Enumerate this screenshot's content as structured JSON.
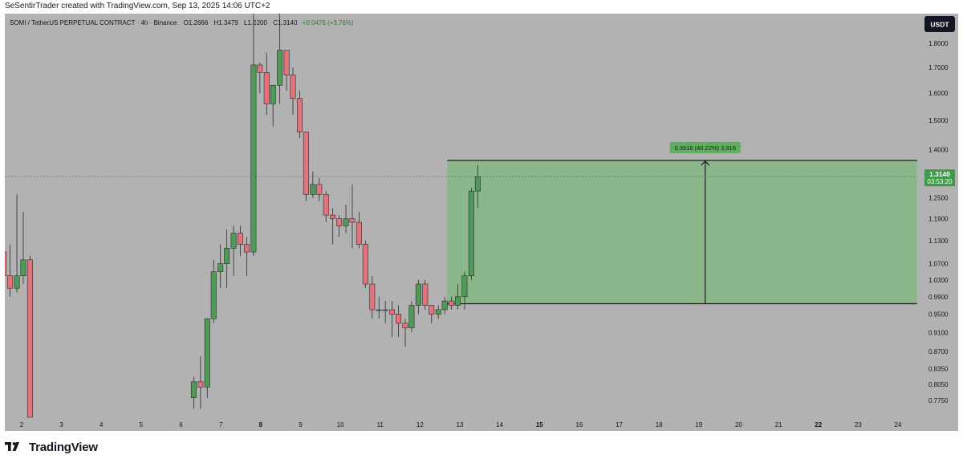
{
  "header": {
    "credit": "SeSentirTrader created with TradingView.com, Sep 13, 2025 14:06 UTC+2"
  },
  "legend": {
    "symbol": "SOMI / TetherUS PERPETUAL CONTRACT · 4h · Binance",
    "open": "O1.2666",
    "high": "H1.3479",
    "low": "L1.2200",
    "close": "C1.3140",
    "change": "+0.0476 (+3.76%)"
  },
  "currency_button": "USDT",
  "price_tag": {
    "price": "1.3140",
    "countdown": "03:53:20"
  },
  "measure_label": "0.3916 (40.22%) 3,916",
  "footer": {
    "brand": "TradingView"
  },
  "colors": {
    "background": "#b2b2b2",
    "up": "#4f9a56",
    "down": "#e5727a",
    "measure_fill": "#8bb88a",
    "measure_label_bg": "#5fae5f",
    "price_tag": "#3f9a4a"
  },
  "chart_data": {
    "type": "candlestick",
    "yscale": "log",
    "ylim": [
      0.745,
      1.93
    ],
    "price_ticks": [
      "1.8000",
      "1.7000",
      "1.6000",
      "1.5000",
      "1.4000",
      "1.2500",
      "1.1900",
      "1.1300",
      "1.0700",
      "1.0300",
      "0.9900",
      "0.9500",
      "0.9100",
      "0.8700",
      "0.8350",
      "0.8050",
      "0.7750"
    ],
    "date_ticks": [
      "2",
      "3",
      "4",
      "5",
      "6",
      "7",
      "8",
      "9",
      "10",
      "11",
      "12",
      "13",
      "14",
      "15",
      "16",
      "17",
      "18",
      "19",
      "20",
      "21",
      "22",
      "23",
      "24"
    ],
    "bold_date_ticks": [
      "8",
      "15",
      "22"
    ],
    "day_start_index": 2,
    "day_end_index": 24,
    "candles": [
      {
        "t": 1.55,
        "o": 1.1,
        "h": 1.12,
        "l": 1.03,
        "c": 1.04
      },
      {
        "t": 1.71,
        "o": 1.04,
        "h": 1.12,
        "l": 0.99,
        "c": 1.01
      },
      {
        "t": 1.88,
        "o": 1.01,
        "h": 1.26,
        "l": 1.0,
        "c": 1.04
      },
      {
        "t": 2.04,
        "o": 1.04,
        "h": 1.21,
        "l": 1.02,
        "c": 1.08
      },
      {
        "t": 2.21,
        "o": 1.08,
        "h": 1.09,
        "l": 0.74,
        "c": 0.74
      },
      {
        "t": 6.32,
        "o": 0.78,
        "h": 0.82,
        "l": 0.76,
        "c": 0.81
      },
      {
        "t": 6.49,
        "o": 0.81,
        "h": 0.86,
        "l": 0.76,
        "c": 0.8
      },
      {
        "t": 6.66,
        "o": 0.8,
        "h": 0.94,
        "l": 0.78,
        "c": 0.94
      },
      {
        "t": 6.82,
        "o": 0.94,
        "h": 1.08,
        "l": 0.93,
        "c": 1.05
      },
      {
        "t": 6.99,
        "o": 1.05,
        "h": 1.12,
        "l": 1.01,
        "c": 1.07
      },
      {
        "t": 7.15,
        "o": 1.07,
        "h": 1.16,
        "l": 1.01,
        "c": 1.11
      },
      {
        "t": 7.32,
        "o": 1.11,
        "h": 1.17,
        "l": 1.04,
        "c": 1.15
      },
      {
        "t": 7.49,
        "o": 1.15,
        "h": 1.17,
        "l": 1.09,
        "c": 1.12
      },
      {
        "t": 7.65,
        "o": 1.12,
        "h": 1.14,
        "l": 1.04,
        "c": 1.1
      },
      {
        "t": 7.82,
        "o": 1.1,
        "h": 1.93,
        "l": 1.09,
        "c": 1.71
      },
      {
        "t": 7.98,
        "o": 1.71,
        "h": 1.72,
        "l": 1.6,
        "c": 1.68
      },
      {
        "t": 8.15,
        "o": 1.68,
        "h": 1.76,
        "l": 1.52,
        "c": 1.56
      },
      {
        "t": 8.31,
        "o": 1.56,
        "h": 1.62,
        "l": 1.48,
        "c": 1.63
      },
      {
        "t": 8.48,
        "o": 1.63,
        "h": 1.93,
        "l": 1.56,
        "c": 1.77
      },
      {
        "t": 8.65,
        "o": 1.77,
        "h": 1.77,
        "l": 1.61,
        "c": 1.67
      },
      {
        "t": 8.81,
        "o": 1.67,
        "h": 1.7,
        "l": 1.52,
        "c": 1.58
      },
      {
        "t": 8.98,
        "o": 1.58,
        "h": 1.61,
        "l": 1.44,
        "c": 1.46
      },
      {
        "t": 9.14,
        "o": 1.46,
        "h": 1.46,
        "l": 1.24,
        "c": 1.26
      },
      {
        "t": 9.31,
        "o": 1.26,
        "h": 1.33,
        "l": 1.25,
        "c": 1.29
      },
      {
        "t": 9.47,
        "o": 1.29,
        "h": 1.31,
        "l": 1.24,
        "c": 1.26
      },
      {
        "t": 9.64,
        "o": 1.26,
        "h": 1.27,
        "l": 1.18,
        "c": 1.2
      },
      {
        "t": 9.81,
        "o": 1.2,
        "h": 1.22,
        "l": 1.12,
        "c": 1.19
      },
      {
        "t": 9.97,
        "o": 1.19,
        "h": 1.2,
        "l": 1.14,
        "c": 1.17
      },
      {
        "t": 10.14,
        "o": 1.17,
        "h": 1.23,
        "l": 1.15,
        "c": 1.19
      },
      {
        "t": 10.3,
        "o": 1.19,
        "h": 1.29,
        "l": 1.11,
        "c": 1.18
      },
      {
        "t": 10.47,
        "o": 1.18,
        "h": 1.21,
        "l": 1.11,
        "c": 1.12
      },
      {
        "t": 10.63,
        "o": 1.12,
        "h": 1.13,
        "l": 1.01,
        "c": 1.02
      },
      {
        "t": 10.8,
        "o": 1.02,
        "h": 1.04,
        "l": 0.94,
        "c": 0.96
      },
      {
        "t": 10.97,
        "o": 0.96,
        "h": 0.99,
        "l": 0.94,
        "c": 0.96
      },
      {
        "t": 11.13,
        "o": 0.96,
        "h": 0.98,
        "l": 0.93,
        "c": 0.96
      },
      {
        "t": 11.3,
        "o": 0.96,
        "h": 0.98,
        "l": 0.9,
        "c": 0.95
      },
      {
        "t": 11.46,
        "o": 0.95,
        "h": 0.97,
        "l": 0.9,
        "c": 0.93
      },
      {
        "t": 11.63,
        "o": 0.93,
        "h": 0.94,
        "l": 0.88,
        "c": 0.92
      },
      {
        "t": 11.79,
        "o": 0.92,
        "h": 0.98,
        "l": 0.91,
        "c": 0.97
      },
      {
        "t": 11.96,
        "o": 0.97,
        "h": 1.03,
        "l": 0.95,
        "c": 1.02
      },
      {
        "t": 12.13,
        "o": 1.02,
        "h": 1.03,
        "l": 0.96,
        "c": 0.97
      },
      {
        "t": 12.29,
        "o": 0.97,
        "h": 0.97,
        "l": 0.93,
        "c": 0.95
      },
      {
        "t": 12.46,
        "o": 0.95,
        "h": 0.97,
        "l": 0.94,
        "c": 0.96
      },
      {
        "t": 12.62,
        "o": 0.96,
        "h": 0.99,
        "l": 0.95,
        "c": 0.98
      },
      {
        "t": 12.79,
        "o": 0.98,
        "h": 0.99,
        "l": 0.96,
        "c": 0.97
      },
      {
        "t": 12.95,
        "o": 0.97,
        "h": 1.02,
        "l": 0.96,
        "c": 0.99
      },
      {
        "t": 13.12,
        "o": 0.99,
        "h": 1.05,
        "l": 0.96,
        "c": 1.04
      },
      {
        "t": 13.29,
        "o": 1.04,
        "h": 1.28,
        "l": 1.03,
        "c": 1.27
      },
      {
        "t": 13.45,
        "o": 1.27,
        "h": 1.35,
        "l": 1.22,
        "c": 1.314
      }
    ],
    "last_price": 1.314,
    "measure": {
      "x_start": 12.68,
      "x_end": 24.48,
      "arrow_x": 19.16,
      "y_low": 0.9737,
      "y_high": 1.3653,
      "change": 0.3916,
      "percent": 40.22
    }
  }
}
